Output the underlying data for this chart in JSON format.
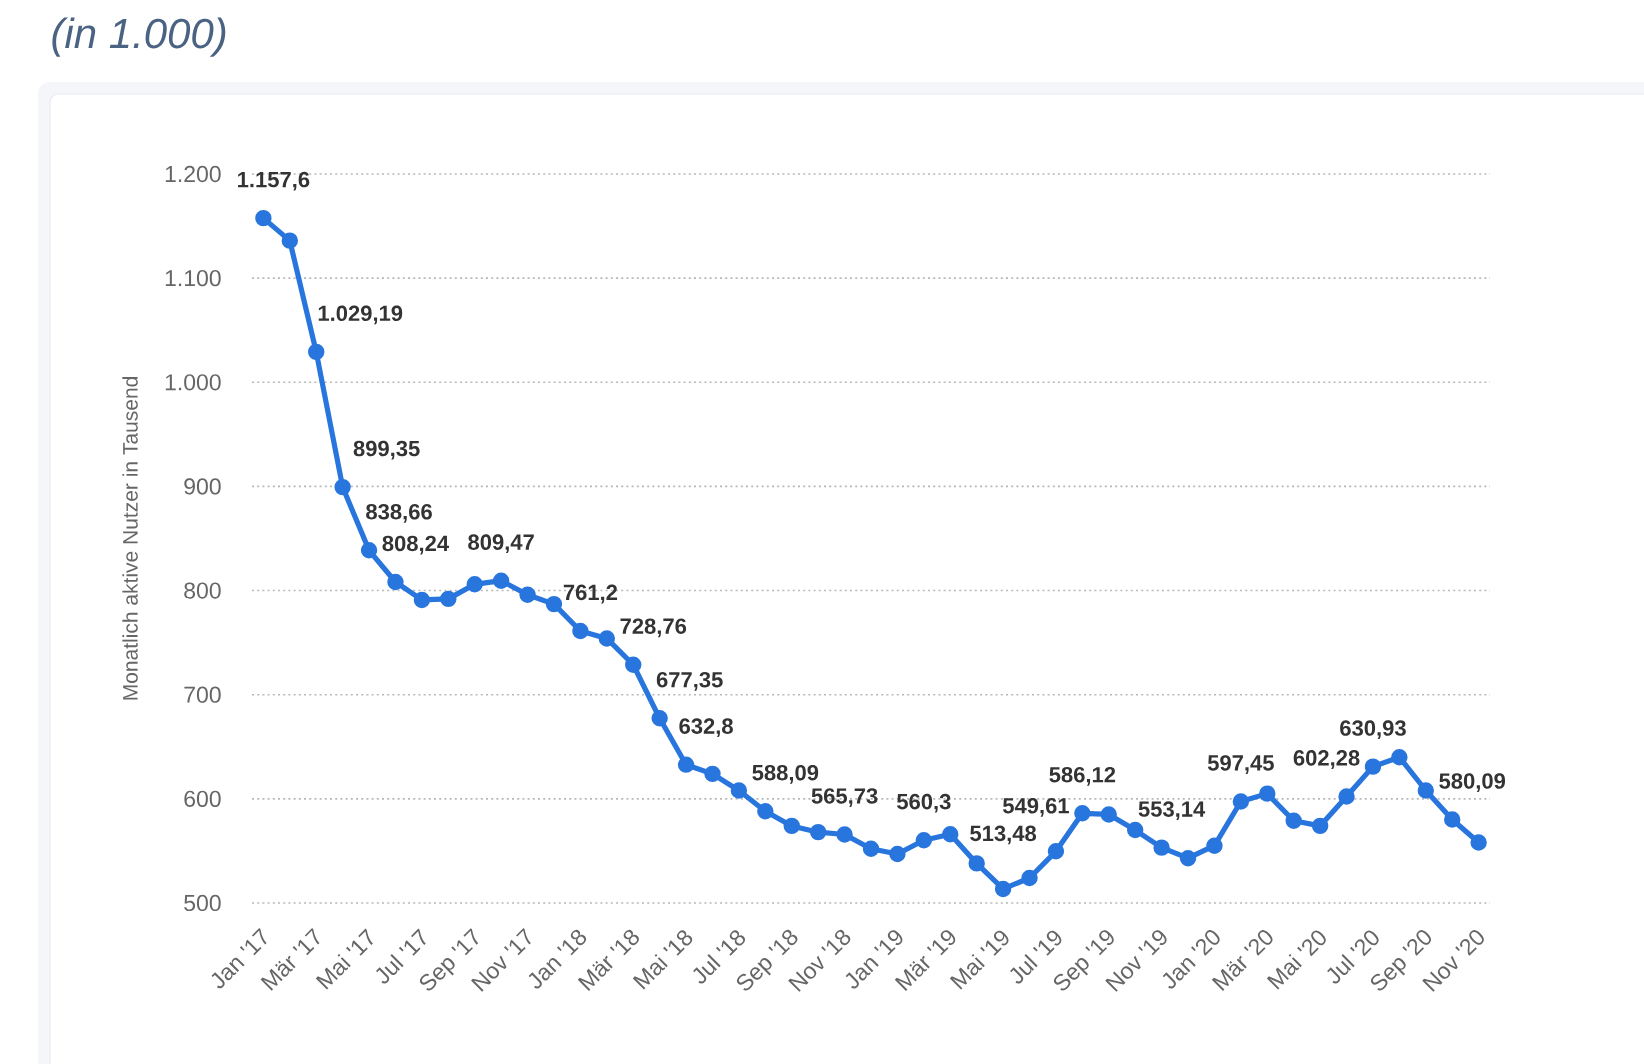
{
  "chart_data": {
    "type": "line",
    "title": "(in 1.000)",
    "ylabel": "Monatlich aktive Nutzer in Tausend",
    "categories": [
      "Jan '17",
      null,
      "Mär '17",
      null,
      "Mai '17",
      null,
      "Jul '17",
      null,
      "Sep '17",
      null,
      "Nov '17",
      null,
      "Jan '18",
      null,
      "Mär '18",
      null,
      "Mai '18",
      null,
      "Jul '18",
      null,
      "Sep '18",
      null,
      "Nov '18",
      null,
      "Jan '19",
      null,
      "Mär '19",
      null,
      "Mai '19",
      null,
      "Jul '19",
      null,
      "Sep '19",
      null,
      "Nov '19",
      null,
      "Jan '20",
      null,
      "Mär '20",
      null,
      "Mai '20",
      null,
      "Jul '20",
      null,
      "Sep '20",
      null,
      "Nov '20"
    ],
    "values": [
      1157.6,
      1136,
      1029.19,
      899.35,
      838.66,
      808.24,
      791,
      792,
      806,
      809.47,
      796,
      787,
      761.2,
      754,
      728.76,
      677.35,
      632.8,
      624,
      608,
      588.09,
      574,
      568,
      565.73,
      552,
      547,
      560.3,
      566,
      538,
      513.48,
      524,
      549.61,
      586.12,
      585,
      570,
      553.14,
      543,
      555,
      597.45,
      605,
      579,
      574,
      602.28,
      630.93,
      640,
      608,
      580.09,
      558
    ],
    "value_labels": [
      "1.157,6",
      null,
      "1.029,19",
      "899,35",
      "838,66",
      "808,24",
      null,
      null,
      null,
      "809,47",
      null,
      null,
      "761,2",
      null,
      "728,76",
      "677,35",
      "632,8",
      null,
      null,
      "588,09",
      null,
      null,
      "565,73",
      null,
      null,
      "560,3",
      null,
      null,
      "513,48",
      null,
      "549,61",
      "586,12",
      null,
      null,
      "553,14",
      null,
      null,
      "597,45",
      null,
      null,
      null,
      "602,28",
      "630,93",
      null,
      null,
      "580,09",
      null
    ],
    "color": "#2876dd",
    "ylim": [
      500,
      1200
    ],
    "yticks": [
      500,
      600,
      700,
      800,
      900,
      {
        "value": 1000,
        "label": "1.000"
      },
      {
        "value": 1100,
        "label": "1.100"
      },
      {
        "value": 1200,
        "label": "1.200"
      }
    ],
    "grid": "y",
    "marker": "circle",
    "line_style": "solid"
  }
}
